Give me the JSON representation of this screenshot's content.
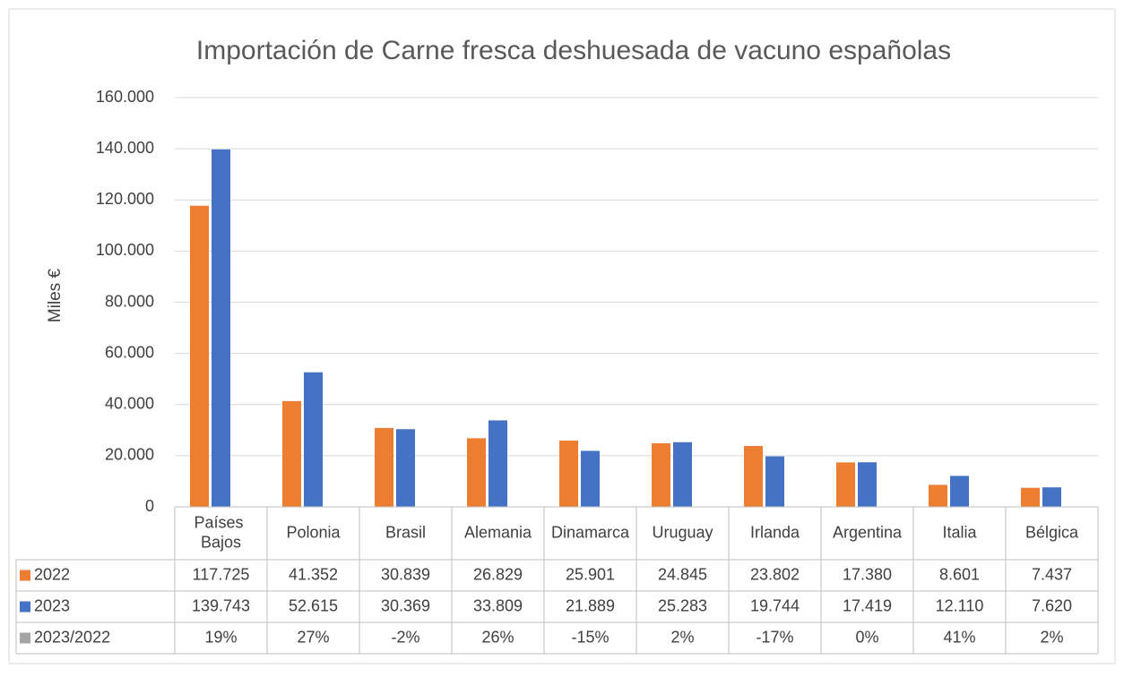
{
  "chart_data": {
    "type": "bar",
    "title": "Importación de Carne fresca deshuesada de vacuno españolas",
    "y_label": "Miles €",
    "categories": [
      "Países Bajos",
      "Polonia",
      "Brasil",
      "Alemania",
      "Dinamarca",
      "Uruguay",
      "Irlanda",
      "Argentina",
      "Italia",
      "Bélgica"
    ],
    "series": [
      {
        "name": "2022",
        "color": "#ed7d31",
        "values": [
          117725,
          41352,
          30839,
          26829,
          25901,
          24845,
          23802,
          17380,
          8601,
          7437
        ],
        "value_labels": [
          "117.725",
          "41.352",
          "30.839",
          "26.829",
          "25.901",
          "24.845",
          "23.802",
          "17.380",
          "8.601",
          "7.437"
        ]
      },
      {
        "name": "2023",
        "color": "#4472c4",
        "values": [
          139743,
          52615,
          30369,
          33809,
          21889,
          25283,
          19744,
          17419,
          12110,
          7620
        ],
        "value_labels": [
          "139.743",
          "52.615",
          "30.369",
          "33.809",
          "21.889",
          "25.283",
          "19.744",
          "17.419",
          "12.110",
          "7.620"
        ]
      },
      {
        "name": "2023/2022",
        "color": "#a5a5a5",
        "values": [
          19,
          27,
          -2,
          26,
          -15,
          2,
          -17,
          0,
          41,
          2
        ],
        "value_labels": [
          "19%",
          "27%",
          "-2%",
          "26%",
          "-15%",
          "2%",
          "-17%",
          "0%",
          "41%",
          "2%"
        ]
      }
    ],
    "ylim": [
      0,
      160000
    ],
    "yticks": [
      0,
      {
        "value": 20000,
        "label": "20.000"
      },
      {
        "value": 40000,
        "label": "40.000"
      },
      {
        "value": 60000,
        "label": "60.000"
      },
      {
        "value": 80000,
        "label": "80.000"
      },
      {
        "value": 100000,
        "label": "100.000"
      },
      {
        "value": 120000,
        "label": "120.000"
      },
      {
        "value": 140000,
        "label": "140.000"
      },
      {
        "value": 160000,
        "label": "160.000"
      }
    ],
    "grid": true,
    "data_table": true
  }
}
